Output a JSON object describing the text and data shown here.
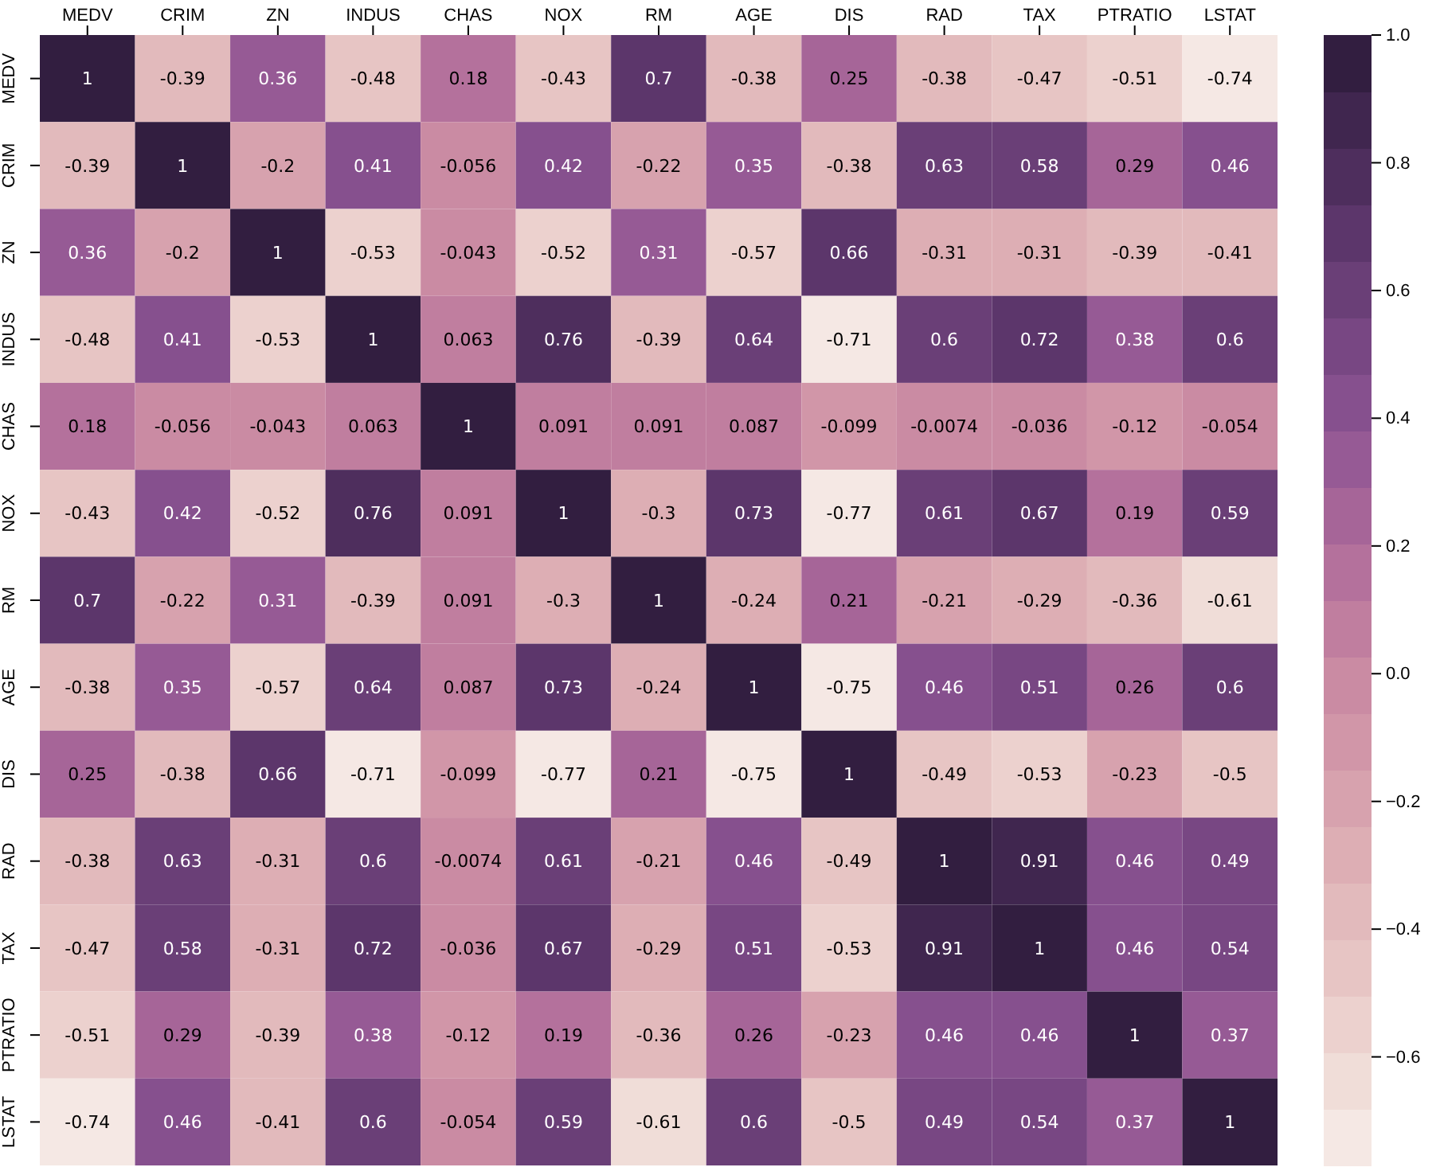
{
  "chart_data": {
    "type": "heatmap",
    "categories": [
      "MEDV",
      "CRIM",
      "ZN",
      "INDUS",
      "CHAS",
      "NOX",
      "RM",
      "AGE",
      "DIS",
      "RAD",
      "TAX",
      "PTRATIO",
      "LSTAT"
    ],
    "y_categories": [
      "MEDV",
      "CRIM",
      "ZN",
      "INDUS",
      "CHAS",
      "NOX",
      "RM",
      "AGE",
      "DIS",
      "RAD",
      "TAX",
      "PTRATIO",
      "LSTAT"
    ],
    "cells": [
      [
        1,
        -0.39,
        0.36,
        -0.48,
        0.18,
        -0.43,
        0.7,
        -0.38,
        0.25,
        -0.38,
        -0.47,
        -0.51,
        -0.74
      ],
      [
        -0.39,
        1,
        -0.2,
        0.41,
        -0.056,
        0.42,
        -0.22,
        0.35,
        -0.38,
        0.63,
        0.58,
        0.29,
        0.46
      ],
      [
        0.36,
        -0.2,
        1,
        -0.53,
        -0.043,
        -0.52,
        0.31,
        -0.57,
        0.66,
        -0.31,
        -0.31,
        -0.39,
        -0.41
      ],
      [
        -0.48,
        0.41,
        -0.53,
        1,
        0.063,
        0.76,
        -0.39,
        0.64,
        -0.71,
        0.6,
        0.72,
        0.38,
        0.6
      ],
      [
        0.18,
        -0.056,
        -0.043,
        0.063,
        1,
        0.091,
        0.091,
        0.087,
        -0.099,
        -0.0074,
        -0.036,
        -0.12,
        -0.054
      ],
      [
        -0.43,
        0.42,
        -0.52,
        0.76,
        0.091,
        1,
        -0.3,
        0.73,
        -0.77,
        0.61,
        0.67,
        0.19,
        0.59
      ],
      [
        0.7,
        -0.22,
        0.31,
        -0.39,
        0.091,
        -0.3,
        1,
        -0.24,
        0.21,
        -0.21,
        -0.29,
        -0.36,
        -0.61
      ],
      [
        -0.38,
        0.35,
        -0.57,
        0.64,
        0.087,
        0.73,
        -0.24,
        1,
        -0.75,
        0.46,
        0.51,
        0.26,
        0.6
      ],
      [
        0.25,
        -0.38,
        0.66,
        -0.71,
        -0.099,
        -0.77,
        0.21,
        -0.75,
        1,
        -0.49,
        -0.53,
        -0.23,
        -0.5
      ],
      [
        -0.38,
        0.63,
        -0.31,
        0.6,
        -0.0074,
        0.61,
        -0.21,
        0.46,
        -0.49,
        1,
        0.91,
        0.46,
        0.49
      ],
      [
        -0.47,
        0.58,
        -0.31,
        0.72,
        -0.036,
        0.67,
        -0.29,
        0.51,
        -0.53,
        0.91,
        1,
        0.46,
        0.54
      ],
      [
        -0.51,
        0.29,
        -0.39,
        0.38,
        -0.12,
        0.19,
        -0.36,
        0.26,
        -0.23,
        0.46,
        0.46,
        1,
        0.37
      ],
      [
        -0.74,
        0.46,
        -0.41,
        0.6,
        -0.054,
        0.59,
        -0.61,
        0.6,
        -0.5,
        0.49,
        0.54,
        0.37,
        1
      ]
    ],
    "data_labels": true,
    "clim": [
      -0.77,
      1
    ],
    "cticks": [
      {
        "value": -0.6,
        "label": "−0.6"
      },
      {
        "value": -0.4,
        "label": "−0.4"
      },
      {
        "value": -0.2,
        "label": "−0.2"
      },
      {
        "value": 0,
        "label": "0.0"
      },
      {
        "value": 0.2,
        "label": "0.2"
      },
      {
        "value": 0.4,
        "label": "0.4"
      },
      {
        "value": 0.6,
        "label": "0.6"
      },
      {
        "value": 0.8,
        "label": "0.8"
      },
      {
        "value": 1,
        "label": "1.0"
      }
    ]
  }
}
